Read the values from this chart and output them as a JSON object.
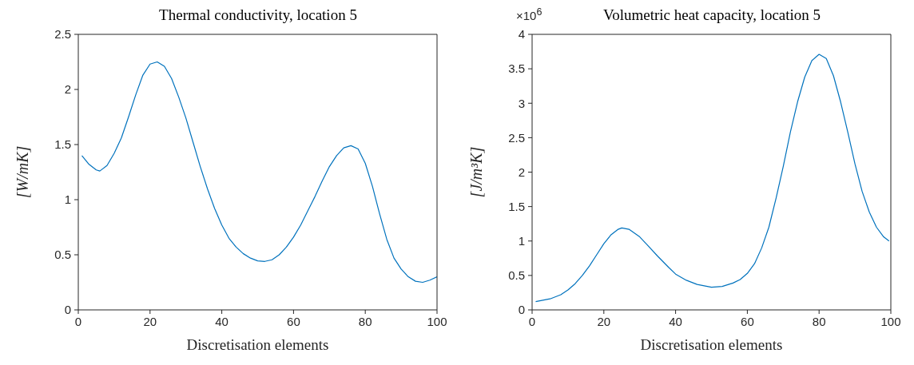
{
  "chart_data": [
    {
      "type": "line",
      "title": "Thermal conductivity, location 5",
      "xlabel": "Discretisation elements",
      "ylabel": "[W/mK]",
      "series": [
        {
          "color": "#0072bd",
          "x": [
            1,
            3,
            5,
            6,
            8,
            10,
            12,
            14,
            16,
            18,
            20,
            22,
            24,
            26,
            28,
            30,
            32,
            34,
            36,
            38,
            40,
            42,
            44,
            46,
            48,
            50,
            52,
            54,
            56,
            58,
            60,
            62,
            64,
            66,
            68,
            70,
            72,
            74,
            76,
            78,
            80,
            82,
            84,
            86,
            88,
            90,
            92,
            94,
            96,
            98,
            100
          ],
          "values": [
            1.4,
            1.32,
            1.27,
            1.26,
            1.31,
            1.42,
            1.56,
            1.75,
            1.95,
            2.13,
            2.23,
            2.25,
            2.21,
            2.1,
            1.93,
            1.74,
            1.52,
            1.3,
            1.1,
            0.92,
            0.77,
            0.65,
            0.57,
            0.51,
            0.47,
            0.445,
            0.44,
            0.455,
            0.5,
            0.57,
            0.66,
            0.77,
            0.9,
            1.03,
            1.17,
            1.3,
            1.4,
            1.47,
            1.49,
            1.46,
            1.33,
            1.12,
            0.87,
            0.64,
            0.47,
            0.37,
            0.3,
            0.26,
            0.25,
            0.27,
            0.3
          ]
        }
      ],
      "xlim": [
        0,
        100
      ],
      "xticks": [
        0,
        20,
        40,
        60,
        80,
        100
      ],
      "ylim": [
        0,
        2.5
      ],
      "yticks": [
        0,
        0.5,
        1,
        1.5,
        2,
        2.5
      ],
      "grid": false,
      "marker": "none",
      "line_style": "solid"
    },
    {
      "type": "line",
      "title": "Volumetric heat capacity, location 5",
      "xlabel": "Discretisation elements",
      "ylabel": "[J/m³K]",
      "annotations": [
        "×10$^{6}$"
      ],
      "series": [
        {
          "color": "#0072bd",
          "x": [
            1,
            5,
            8,
            10,
            12,
            14,
            16,
            18,
            20,
            22,
            24,
            25,
            27,
            30,
            32,
            35,
            38,
            40,
            43,
            46,
            50,
            53,
            56,
            58,
            60,
            62,
            64,
            66,
            68,
            70,
            72,
            74,
            76,
            78,
            80,
            82,
            84,
            86,
            88,
            90,
            92,
            94,
            96,
            98,
            99.5
          ],
          "values": [
            0.12,
            0.16,
            0.22,
            0.29,
            0.38,
            0.5,
            0.64,
            0.8,
            0.96,
            1.09,
            1.17,
            1.19,
            1.17,
            1.06,
            0.95,
            0.78,
            0.62,
            0.52,
            0.43,
            0.37,
            0.33,
            0.34,
            0.39,
            0.44,
            0.53,
            0.67,
            0.9,
            1.2,
            1.62,
            2.08,
            2.58,
            3.02,
            3.38,
            3.62,
            3.71,
            3.65,
            3.4,
            3.02,
            2.58,
            2.12,
            1.72,
            1.42,
            1.2,
            1.06,
            1.0
          ]
        }
      ],
      "xlim": [
        0,
        100
      ],
      "xticks": [
        0,
        20,
        40,
        60,
        80,
        100
      ],
      "ylim": [
        0,
        4
      ],
      "yticks": [
        0,
        0.5,
        1,
        1.5,
        2,
        2.5,
        3,
        3.5,
        4
      ],
      "grid": false,
      "marker": "none",
      "line_style": "solid"
    }
  ]
}
